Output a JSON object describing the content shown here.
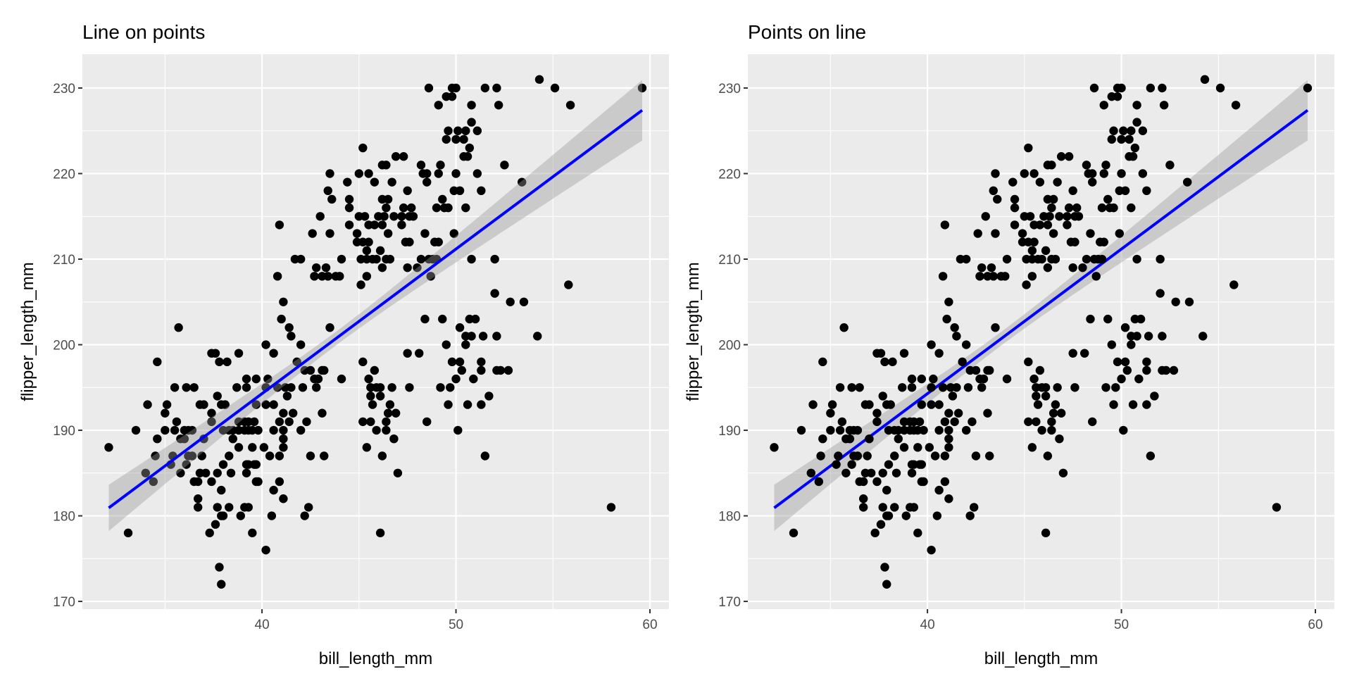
{
  "chart_data": [
    {
      "type": "scatter",
      "title": "Line on points",
      "xlabel": "bill_length_mm",
      "ylabel": "flipper_length_mm",
      "layer_order": "line-over-points",
      "xlim": [
        30.74,
        60.98
      ],
      "ylim": [
        169.1,
        233.95
      ],
      "xticks": [
        40,
        50,
        60
      ],
      "yticks": [
        170,
        180,
        190,
        200,
        210,
        220,
        230
      ],
      "grid": true,
      "fit": {
        "method": "lm",
        "intercept": 126.68,
        "slope": 1.69,
        "x_range": [
          32.1,
          59.6
        ],
        "ci_level": 0.95,
        "color": "#0000ff",
        "band_color": "#999999"
      },
      "points_ref": "points"
    },
    {
      "type": "scatter",
      "title": "Points on line",
      "xlabel": "bill_length_mm",
      "ylabel": "flipper_length_mm",
      "layer_order": "points-over-line",
      "xlim": [
        30.74,
        60.98
      ],
      "ylim": [
        169.1,
        233.95
      ],
      "xticks": [
        40,
        50,
        60
      ],
      "yticks": [
        170,
        180,
        190,
        200,
        210,
        220,
        230
      ],
      "grid": true,
      "fit": {
        "method": "lm",
        "intercept": 126.68,
        "slope": 1.69,
        "x_range": [
          32.1,
          59.6
        ],
        "ci_level": 0.95,
        "color": "#0000ff",
        "band_color": "#999999"
      },
      "points_ref": "points"
    }
  ],
  "points": [
    [
      48.6,
      230
    ],
    [
      49.5,
      229
    ],
    [
      49.8,
      229
    ],
    [
      49.8,
      230
    ],
    [
      50.0,
      230
    ],
    [
      49.1,
      228
    ],
    [
      51.5,
      230
    ],
    [
      52.1,
      230
    ],
    [
      52.2,
      228
    ],
    [
      50.8,
      228
    ],
    [
      54.3,
      231
    ],
    [
      55.1,
      230
    ],
    [
      55.9,
      228
    ],
    [
      59.6,
      230
    ],
    [
      49.6,
      225
    ],
    [
      50.1,
      225
    ],
    [
      50.5,
      225
    ],
    [
      51.1,
      225
    ],
    [
      49.5,
      224
    ],
    [
      50.0,
      224
    ],
    [
      50.4,
      224
    ],
    [
      50.8,
      226
    ],
    [
      50.7,
      223
    ],
    [
      50.4,
      222
    ],
    [
      50.6,
      222
    ],
    [
      45.2,
      223
    ],
    [
      51.1,
      220
    ],
    [
      51.3,
      218
    ],
    [
      52.5,
      221
    ],
    [
      53.4,
      219
    ],
    [
      49.2,
      221
    ],
    [
      49.3,
      217
    ],
    [
      48.2,
      221
    ],
    [
      48.3,
      220
    ],
    [
      48.5,
      220
    ],
    [
      48.5,
      219
    ],
    [
      49.1,
      220
    ],
    [
      50.0,
      220
    ],
    [
      49.9,
      218
    ],
    [
      50.2,
      218
    ],
    [
      49.0,
      216
    ],
    [
      49.4,
      216
    ],
    [
      49.6,
      216
    ],
    [
      50.5,
      216
    ],
    [
      49.9,
      213
    ],
    [
      50.8,
      210
    ],
    [
      52.0,
      210
    ],
    [
      48.4,
      213
    ],
    [
      48.9,
      212
    ],
    [
      49.1,
      212
    ],
    [
      48.6,
      210
    ],
    [
      48.8,
      210
    ],
    [
      49.0,
      210
    ],
    [
      48.2,
      210
    ],
    [
      48.0,
      209
    ],
    [
      48.7,
      208
    ],
    [
      46.9,
      222
    ],
    [
      47.3,
      222
    ],
    [
      46.2,
      221
    ],
    [
      46.4,
      221
    ],
    [
      45.5,
      220
    ],
    [
      45.0,
      220
    ],
    [
      45.8,
      219
    ],
    [
      46.7,
      219
    ],
    [
      47.5,
      218
    ],
    [
      46.2,
      217
    ],
    [
      46.5,
      217
    ],
    [
      46.4,
      216
    ],
    [
      47.3,
      216
    ],
    [
      47.7,
      216
    ],
    [
      46.0,
      215
    ],
    [
      46.3,
      215
    ],
    [
      46.8,
      215
    ],
    [
      47.2,
      215
    ],
    [
      47.6,
      215
    ],
    [
      47.8,
      215
    ],
    [
      45.0,
      215
    ],
    [
      45.3,
      215
    ],
    [
      45.5,
      214
    ],
    [
      45.8,
      214
    ],
    [
      46.2,
      214
    ],
    [
      47.2,
      214
    ],
    [
      44.5,
      214
    ],
    [
      44.9,
      213
    ],
    [
      46.5,
      213
    ],
    [
      44.9,
      212
    ],
    [
      45.2,
      212
    ],
    [
      45.5,
      212
    ],
    [
      47.4,
      212
    ],
    [
      47.6,
      212
    ],
    [
      45.4,
      211
    ],
    [
      46.1,
      211
    ],
    [
      45.1,
      210
    ],
    [
      45.4,
      210
    ],
    [
      45.7,
      210
    ],
    [
      45.9,
      210
    ],
    [
      46.4,
      210
    ],
    [
      46.6,
      210
    ],
    [
      46.2,
      209
    ],
    [
      47.5,
      209
    ],
    [
      45.4,
      208
    ],
    [
      45.1,
      207
    ],
    [
      44.4,
      219
    ],
    [
      44.5,
      217
    ],
    [
      44.5,
      216
    ],
    [
      43.4,
      218
    ],
    [
      43.6,
      217
    ],
    [
      43.5,
      220
    ],
    [
      43.0,
      215
    ],
    [
      42.6,
      213
    ],
    [
      43.5,
      213
    ],
    [
      42.8,
      209
    ],
    [
      43.3,
      209
    ],
    [
      42.7,
      208
    ],
    [
      43.1,
      208
    ],
    [
      43.4,
      208
    ],
    [
      43.8,
      208
    ],
    [
      44.0,
      208
    ],
    [
      44.1,
      210
    ],
    [
      41.7,
      210
    ],
    [
      42.0,
      210
    ],
    [
      40.8,
      208
    ],
    [
      40.9,
      214
    ],
    [
      41.1,
      205
    ],
    [
      41.0,
      203
    ],
    [
      41.4,
      202
    ],
    [
      41.5,
      201
    ],
    [
      42.0,
      200
    ],
    [
      43.5,
      202
    ],
    [
      41.8,
      198
    ],
    [
      40.2,
      200
    ],
    [
      40.6,
      199
    ],
    [
      39.7,
      196
    ],
    [
      39.2,
      196
    ],
    [
      38.7,
      195
    ],
    [
      39.2,
      195
    ],
    [
      40.3,
      196
    ],
    [
      40.2,
      195
    ],
    [
      40.8,
      195
    ],
    [
      41.2,
      195
    ],
    [
      41.5,
      195
    ],
    [
      42.1,
      195
    ],
    [
      42.2,
      197
    ],
    [
      42.5,
      197
    ],
    [
      42.7,
      196
    ],
    [
      42.9,
      196
    ],
    [
      42.8,
      195
    ],
    [
      43.1,
      197
    ],
    [
      43.2,
      197
    ],
    [
      44.1,
      196
    ],
    [
      41.3,
      194
    ],
    [
      41.1,
      192
    ],
    [
      41.6,
      192
    ],
    [
      43.1,
      192
    ],
    [
      39.7,
      193
    ],
    [
      40.2,
      193
    ],
    [
      40.6,
      193
    ],
    [
      40.9,
      191
    ],
    [
      41.4,
      191
    ],
    [
      40.6,
      190
    ],
    [
      41.1,
      190
    ],
    [
      42.0,
      190
    ],
    [
      42.3,
      191
    ],
    [
      41.1,
      189
    ],
    [
      41.1,
      188
    ],
    [
      40.1,
      188
    ],
    [
      40.4,
      187
    ],
    [
      40.9,
      187
    ],
    [
      42.5,
      187
    ],
    [
      43.2,
      187
    ],
    [
      40.9,
      184
    ],
    [
      40.6,
      183
    ],
    [
      41.1,
      182
    ],
    [
      42.4,
      181
    ],
    [
      42.2,
      180
    ],
    [
      40.5,
      180
    ],
    [
      40.2,
      176
    ],
    [
      32.1,
      188
    ],
    [
      33.1,
      178
    ],
    [
      33.5,
      190
    ],
    [
      34.1,
      193
    ],
    [
      34.0,
      185
    ],
    [
      34.4,
      184
    ],
    [
      34.5,
      187
    ],
    [
      34.6,
      189
    ],
    [
      34.6,
      198
    ],
    [
      35.0,
      192
    ],
    [
      35.1,
      193
    ],
    [
      35.0,
      190
    ],
    [
      35.3,
      186
    ],
    [
      35.4,
      187
    ],
    [
      35.5,
      195
    ],
    [
      35.6,
      191
    ],
    [
      35.5,
      190
    ],
    [
      35.7,
      202
    ],
    [
      35.8,
      189
    ],
    [
      36.0,
      189
    ],
    [
      35.8,
      185
    ],
    [
      36.1,
      195
    ],
    [
      36.5,
      195
    ],
    [
      36.0,
      190
    ],
    [
      36.2,
      190
    ],
    [
      36.4,
      190
    ],
    [
      36.1,
      186
    ],
    [
      36.2,
      187
    ],
    [
      36.4,
      187
    ],
    [
      36.8,
      193
    ],
    [
      37.0,
      193
    ],
    [
      36.9,
      187
    ],
    [
      36.5,
      184
    ],
    [
      36.7,
      184
    ],
    [
      36.7,
      182
    ],
    [
      36.7,
      181
    ],
    [
      36.8,
      185
    ],
    [
      37.1,
      185
    ],
    [
      37.0,
      189
    ],
    [
      37.4,
      199
    ],
    [
      37.6,
      199
    ],
    [
      37.4,
      192
    ],
    [
      37.4,
      191
    ],
    [
      37.7,
      194
    ],
    [
      37.4,
      184
    ],
    [
      37.3,
      178
    ],
    [
      37.6,
      179
    ],
    [
      37.7,
      185
    ],
    [
      37.8,
      198
    ],
    [
      38.2,
      198
    ],
    [
      37.9,
      183
    ],
    [
      37.7,
      181
    ],
    [
      37.9,
      180
    ],
    [
      38.0,
      180
    ],
    [
      37.9,
      193
    ],
    [
      38.1,
      193
    ],
    [
      38.0,
      190
    ],
    [
      38.3,
      190
    ],
    [
      38.0,
      186
    ],
    [
      38.3,
      187
    ],
    [
      38.3,
      181
    ],
    [
      38.4,
      185
    ],
    [
      38.5,
      190
    ],
    [
      38.8,
      190
    ],
    [
      39.1,
      190
    ],
    [
      38.5,
      189
    ],
    [
      38.8,
      191
    ],
    [
      39.1,
      191
    ],
    [
      39.3,
      191
    ],
    [
      38.8,
      188
    ],
    [
      38.8,
      199
    ],
    [
      38.9,
      180
    ],
    [
      39.1,
      181
    ],
    [
      39.3,
      181
    ],
    [
      39.2,
      186
    ],
    [
      39.3,
      186
    ],
    [
      39.2,
      185
    ],
    [
      39.3,
      190
    ],
    [
      39.5,
      190
    ],
    [
      39.8,
      190
    ],
    [
      39.5,
      188
    ],
    [
      39.6,
      191
    ],
    [
      39.6,
      186
    ],
    [
      39.7,
      186
    ],
    [
      39.5,
      178
    ],
    [
      39.7,
      184
    ],
    [
      39.8,
      184
    ],
    [
      37.8,
      174
    ],
    [
      37.9,
      172
    ],
    [
      45.2,
      198
    ],
    [
      45.5,
      196
    ],
    [
      45.8,
      197
    ],
    [
      45.6,
      195
    ],
    [
      45.9,
      195
    ],
    [
      46.1,
      195
    ],
    [
      45.6,
      194
    ],
    [
      46.1,
      194
    ],
    [
      45.7,
      193
    ],
    [
      45.2,
      191
    ],
    [
      45.6,
      191
    ],
    [
      45.9,
      190
    ],
    [
      46.4,
      190
    ],
    [
      46.4,
      191
    ],
    [
      46.5,
      192
    ],
    [
      46.6,
      193
    ],
    [
      46.7,
      195
    ],
    [
      46.9,
      192
    ],
    [
      46.8,
      189
    ],
    [
      45.4,
      188
    ],
    [
      46.2,
      187
    ],
    [
      47.0,
      185
    ],
    [
      46.1,
      178
    ],
    [
      47.5,
      199
    ],
    [
      48.1,
      199
    ],
    [
      47.6,
      195
    ],
    [
      48.5,
      191
    ],
    [
      48.4,
      203
    ],
    [
      49.3,
      203
    ],
    [
      49.5,
      200
    ],
    [
      49.8,
      198
    ],
    [
      50.2,
      198
    ],
    [
      50.2,
      202
    ],
    [
      50.5,
      201
    ],
    [
      50.8,
      201
    ],
    [
      50.7,
      203
    ],
    [
      51.0,
      203
    ],
    [
      50.5,
      200
    ],
    [
      50.3,
      197
    ],
    [
      50.0,
      196
    ],
    [
      49.2,
      195
    ],
    [
      49.7,
      195
    ],
    [
      50.9,
      196
    ],
    [
      49.6,
      193
    ],
    [
      50.6,
      193
    ],
    [
      50.1,
      190
    ],
    [
      51.3,
      198
    ],
    [
      51.3,
      197
    ],
    [
      51.4,
      201
    ],
    [
      51.3,
      193
    ],
    [
      51.7,
      194
    ],
    [
      51.5,
      187
    ],
    [
      52.0,
      206
    ],
    [
      52.1,
      201
    ],
    [
      52.1,
      197
    ],
    [
      52.3,
      197
    ],
    [
      52.7,
      197
    ],
    [
      52.8,
      205
    ],
    [
      53.5,
      205
    ],
    [
      54.2,
      201
    ],
    [
      55.8,
      207
    ],
    [
      58.0,
      181
    ]
  ],
  "colors": {
    "panel_bg": "#ebebeb",
    "grid": "#ffffff",
    "point": "#000000",
    "line": "#0000ff",
    "band": "#999999",
    "tick_text": "#4d4d4d"
  }
}
